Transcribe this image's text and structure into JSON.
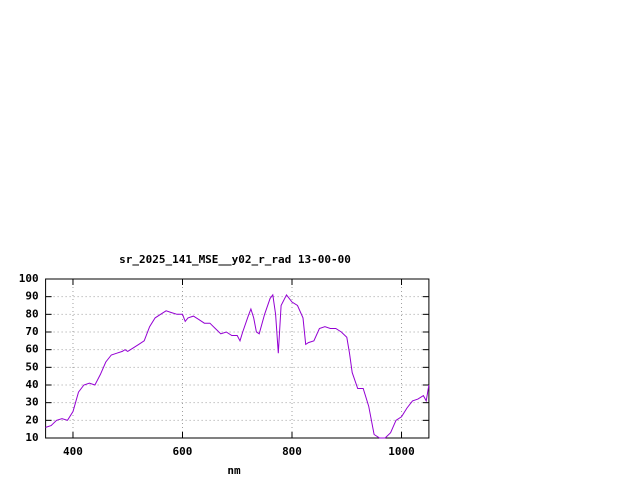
{
  "chart_data": {
    "type": "line",
    "title": "sr_2025_141_MSE__y02_r_rad 13-00-00",
    "xlabel": "nm",
    "x": [
      350,
      360,
      370,
      380,
      390,
      400,
      410,
      420,
      430,
      440,
      450,
      460,
      470,
      480,
      490,
      495,
      500,
      510,
      520,
      530,
      540,
      550,
      560,
      570,
      580,
      590,
      600,
      605,
      610,
      620,
      630,
      640,
      650,
      660,
      670,
      680,
      690,
      700,
      705,
      710,
      720,
      725,
      730,
      735,
      740,
      750,
      760,
      765,
      770,
      775,
      780,
      790,
      800,
      810,
      820,
      825,
      830,
      840,
      850,
      860,
      870,
      880,
      890,
      900,
      905,
      910,
      920,
      930,
      940,
      950,
      960,
      970,
      980,
      990,
      1000,
      1010,
      1020,
      1030,
      1040,
      1045,
      1050
    ],
    "series": [
      {
        "name": "sr_2025_141_MSE__y02_r_rad",
        "color": "#9400d3",
        "values": [
          16,
          17,
          20,
          21,
          20,
          25,
          36,
          40,
          41,
          40,
          46,
          53,
          57,
          58,
          59,
          60,
          59,
          61,
          63,
          65,
          73,
          78,
          80,
          82,
          81,
          80,
          80,
          76,
          78,
          79,
          77,
          75,
          75,
          72,
          69,
          70,
          68,
          68,
          65,
          70,
          79,
          83,
          78,
          70,
          69,
          80,
          89,
          91,
          80,
          58,
          85,
          91,
          87,
          85,
          78,
          63,
          64,
          65,
          72,
          73,
          72,
          72,
          70,
          67,
          58,
          47,
          38,
          38,
          28,
          12,
          10,
          10,
          13,
          20,
          22,
          27,
          31,
          32,
          34,
          31,
          40
        ]
      }
    ],
    "xlim": [
      350,
      1050
    ],
    "ylim": [
      10,
      100
    ],
    "xticks": [
      400,
      600,
      800,
      1000
    ],
    "yticks": [
      10,
      20,
      30,
      40,
      50,
      60,
      70,
      80,
      90,
      100
    ],
    "grid": true
  }
}
